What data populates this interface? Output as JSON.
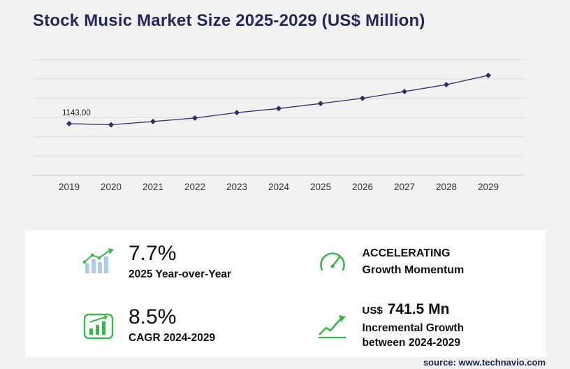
{
  "title": "Stock Music Market Size 2025-2029 (US$ Million)",
  "source": "source: www.technavio.com",
  "colors": {
    "navy": "#24265e",
    "line": "#2d2b6e",
    "green": "#3bb54a",
    "light_blue": "#aecbea",
    "grid": "#d9d9d9",
    "axis": "#c2c2c2",
    "background": "#f2f2f2",
    "panel": "#ffffff",
    "tick_text": "#333333"
  },
  "chart_data": {
    "type": "line",
    "title": "Stock Music Market Size 2025-2029 (US$ Million)",
    "categories": [
      "2019",
      "2020",
      "2021",
      "2022",
      "2023",
      "2024",
      "2025",
      "2026",
      "2027",
      "2028",
      "2029"
    ],
    "values": [
      1143.0,
      1118,
      1190,
      1268,
      1390,
      1480,
      1594,
      1710,
      1860,
      2015,
      2221.5
    ],
    "first_point_label": "1143.00",
    "ylim": [
      0,
      2580
    ],
    "grid": true,
    "legend": false,
    "marker": "diamond"
  },
  "stats": {
    "yoy": {
      "value": "7.7%",
      "label": "2025 Year-over-Year"
    },
    "momentum": {
      "line1": "ACCELERATING",
      "line2": "Growth Momentum"
    },
    "cagr": {
      "value": "8.5%",
      "label": "CAGR 2024-2029"
    },
    "incremental": {
      "currency": "US$",
      "value": "741.5 Mn",
      "label_line1": "Incremental Growth",
      "label_line2": "between 2024-2029"
    }
  }
}
